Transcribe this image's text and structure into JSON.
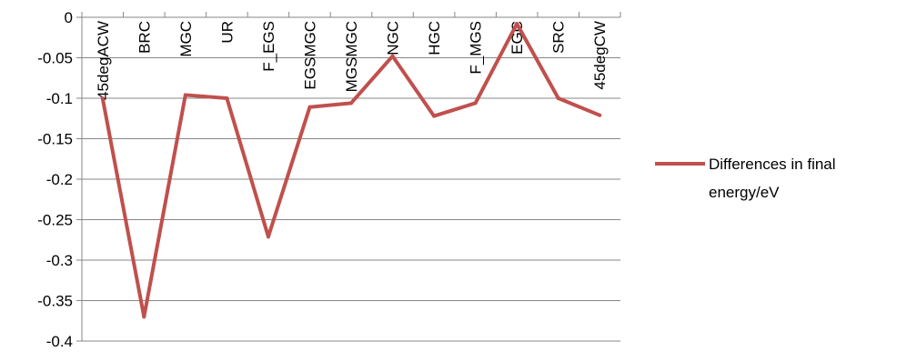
{
  "chart_data": {
    "type": "line",
    "categories": [
      "45degACW",
      "BRC",
      "MGC",
      "UR",
      "F_EGS",
      "EGSMGC",
      "MGSMGC",
      "NGC",
      "HGC",
      "F_MGS",
      "EGC",
      "SRC",
      "45degCW"
    ],
    "series": [
      {
        "name": "Differences in final energy/eV",
        "values": [
          -0.1,
          -0.37,
          -0.096,
          -0.1,
          -0.271,
          -0.111,
          -0.106,
          -0.048,
          -0.122,
          -0.106,
          -0.008,
          -0.1,
          -0.121
        ],
        "color": "#c0504d"
      }
    ],
    "yticks": [
      "0",
      "-0.05",
      "-0.1",
      "-0.15",
      "-0.2",
      "-0.25",
      "-0.3",
      "-0.35",
      "-0.4"
    ],
    "ylim": [
      -0.4,
      0
    ],
    "grid": true,
    "legend": {
      "position": "right",
      "lines": [
        "Differences in final",
        "energy/eV"
      ]
    },
    "xlabel": "",
    "ylabel": "",
    "title": ""
  }
}
